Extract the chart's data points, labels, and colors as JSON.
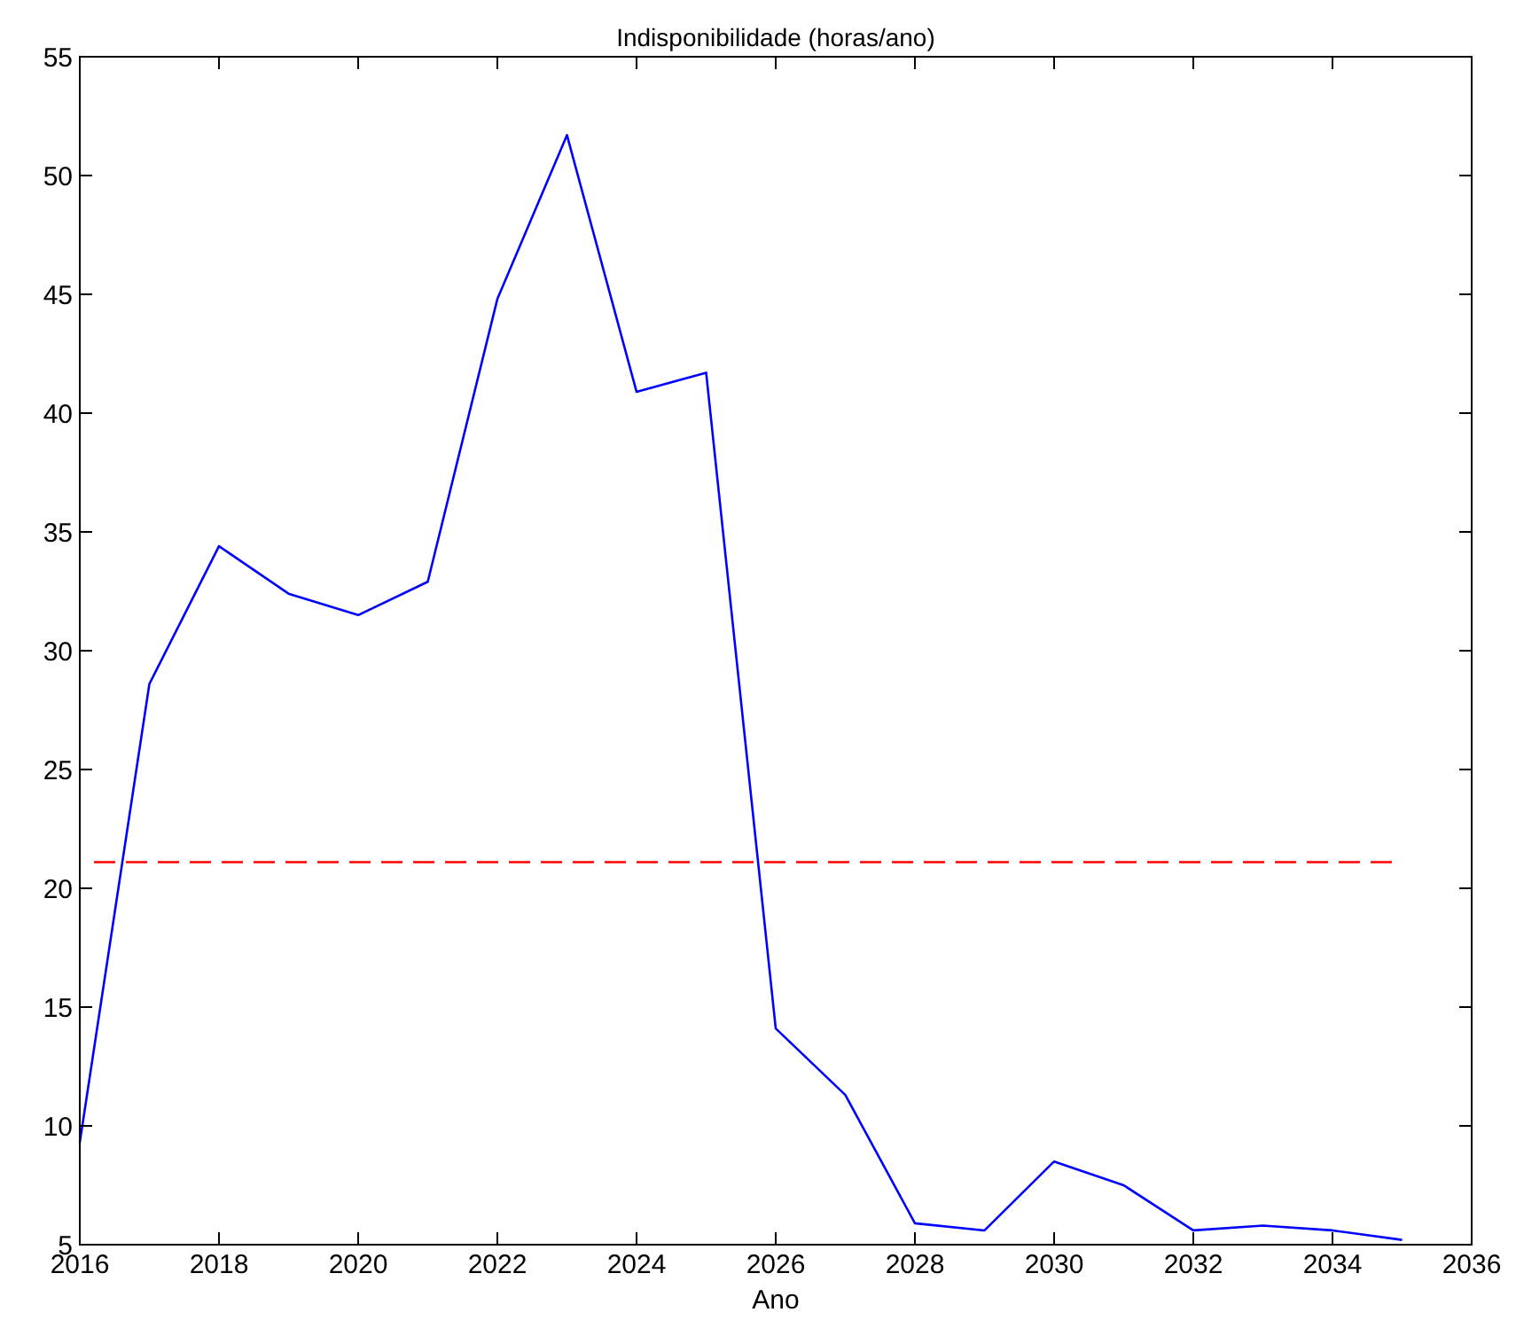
{
  "chart_data": {
    "type": "line",
    "title": "Indisponibilidade (horas/ano)",
    "xlabel": "Ano",
    "x": [
      2016,
      2017,
      2018,
      2019,
      2020,
      2021,
      2022,
      2023,
      2024,
      2025,
      2026,
      2027,
      2028,
      2029,
      2030,
      2031,
      2032,
      2033,
      2034,
      2035
    ],
    "series": [
      {
        "color": "#0000ff",
        "values": [
          9.3,
          28.6,
          34.4,
          32.4,
          31.5,
          32.9,
          44.8,
          51.7,
          40.9,
          41.7,
          14.1,
          11.3,
          5.9,
          5.6,
          8.5,
          7.5,
          5.6,
          5.8,
          5.6,
          5.2
        ]
      }
    ],
    "xlim": [
      2016,
      2036
    ],
    "xticks": [
      2016,
      2018,
      2020,
      2022,
      2024,
      2026,
      2028,
      2030,
      2032,
      2034,
      2036
    ],
    "ylim": [
      5,
      55
    ],
    "yticks": [
      5,
      10,
      15,
      20,
      25,
      30,
      35,
      40,
      45,
      50,
      55
    ],
    "ref_lines": [
      {
        "axis": "y",
        "value": 21.1,
        "color": "#ff0000",
        "line_style": "dashed"
      }
    ],
    "grid": false,
    "marker": "none",
    "line_style": "solid"
  }
}
